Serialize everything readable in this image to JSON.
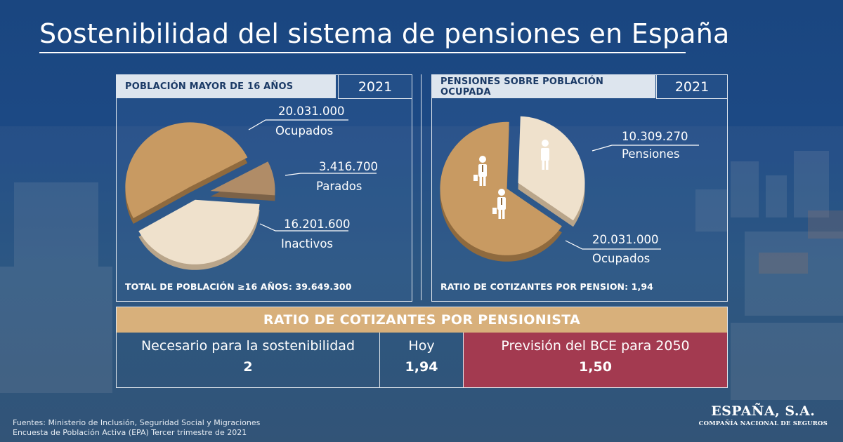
{
  "page": {
    "title": "Sostenibilidad del sistema de pensiones en España"
  },
  "colors": {
    "gold": "#c89a62",
    "gold_side": "#8f6a3e",
    "beige": "#efe1cc",
    "beige_side": "#b9a58a",
    "muted": "#b08c67",
    "header_bar": "#d8b07b",
    "forecast": "#a33a50"
  },
  "left_panel": {
    "header": "POBLACIÓN MAYOR DE 16 AÑOS",
    "year": "2021",
    "footer_label": "TOTAL DE POBLACIÓN ≥16 AÑOS:",
    "footer_value": "39.649.300"
  },
  "right_panel": {
    "header": "PENSIONES SOBRE POBLACIÓN OCUPADA",
    "year": "2021",
    "footer_label": "RATIO DE COTIZANTES POR PENSION:",
    "footer_value": "1,94",
    "icons": [
      "person-icon",
      "worker-icon"
    ]
  },
  "chart_data": [
    {
      "type": "pie",
      "title": "POBLACIÓN MAYOR DE 16 AÑOS",
      "categories": [
        "Ocupados",
        "Parados",
        "Inactivos"
      ],
      "values": [
        20031000,
        3416700,
        16201600
      ],
      "value_labels": [
        "20.031.000",
        "3.416.700",
        "16.201.600"
      ],
      "total": 39649300
    },
    {
      "type": "pie",
      "title": "PENSIONES SOBRE POBLACIÓN OCUPADA",
      "categories": [
        "Pensiones",
        "Ocupados"
      ],
      "values": [
        10309270,
        20031000
      ],
      "value_labels": [
        "10.309.270",
        "20.031.000"
      ],
      "ratio": 1.94
    }
  ],
  "ratio_table": {
    "header": "RATIO DE COTIZANTES POR PENSIONISTA",
    "cells": [
      {
        "label": "Necesario para la sostenibilidad",
        "value": "2"
      },
      {
        "label": "Hoy",
        "value": "1,94"
      },
      {
        "label": "Previsión del BCE para 2050",
        "value": "1,50"
      }
    ]
  },
  "sources": {
    "line1": "Fuentes: Ministerio de Inclusión, Seguridad Social y Migraciones",
    "line2": "Encuesta de Población Activa (EPA) Tercer trimestre de 2021"
  },
  "logo": {
    "name": "ESPAÑA, S.A.",
    "tagline": "COMPAÑÍA NACIONAL DE SEGUROS"
  }
}
